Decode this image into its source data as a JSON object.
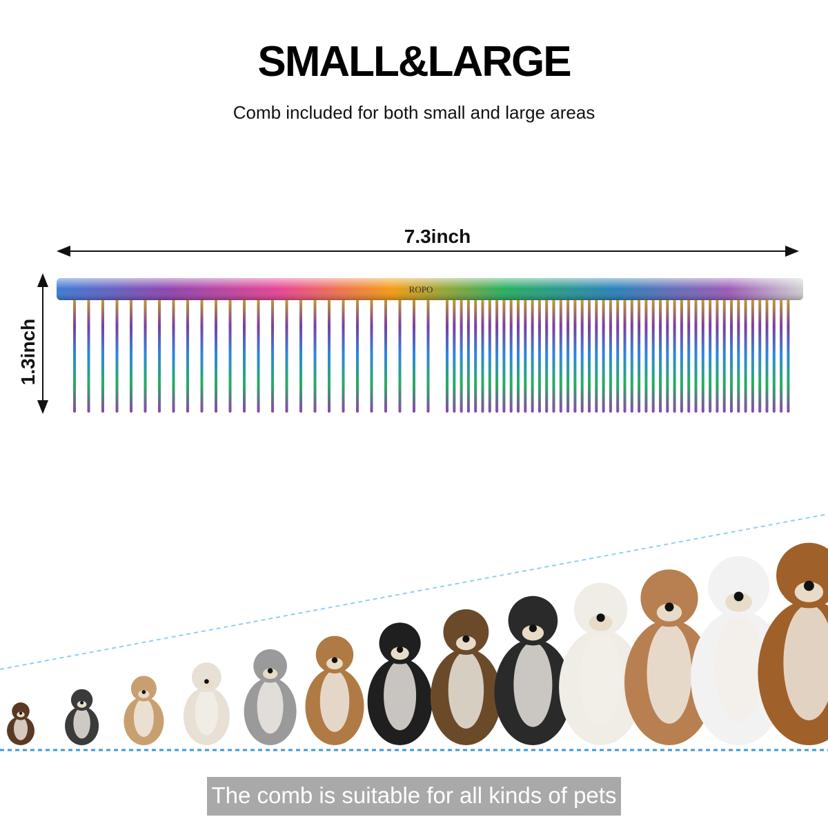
{
  "header": {
    "title": "SMALL&LARGE",
    "subtitle": "Comb included for both small and large areas"
  },
  "comb": {
    "brand": "ROPO",
    "width_label": "7.3inch",
    "height_label": "1.3inch"
  },
  "footer": {
    "caption": "The comb is suitable for all kinds of pets"
  }
}
